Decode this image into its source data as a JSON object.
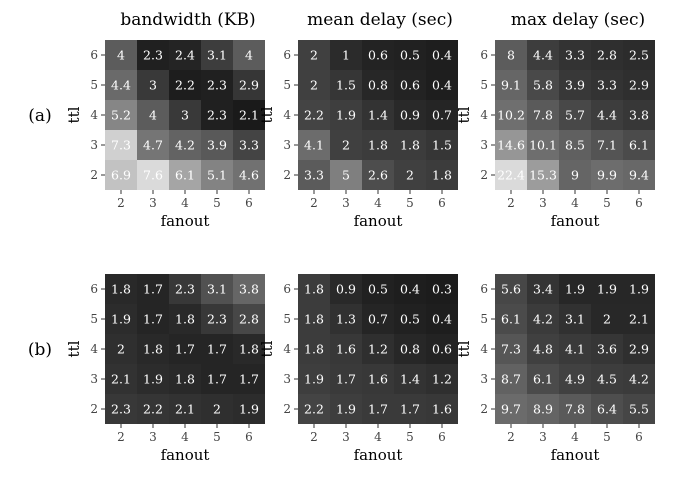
{
  "figure": {
    "row_labels": [
      "(a)",
      "(b)"
    ],
    "col_titles": [
      "bandwidth (KB)",
      "mean delay (sec)",
      "max delay (sec)"
    ]
  },
  "chart_data": [
    {
      "type": "heatmap",
      "row": "(a)",
      "title": "bandwidth (KB)",
      "xlabel": "fanout",
      "ylabel": "ttl",
      "x": [
        2,
        3,
        4,
        5,
        6
      ],
      "y": [
        2,
        3,
        4,
        5,
        6
      ],
      "values": [
        [
          6.9,
          7.6,
          6.1,
          5.1,
          4.6
        ],
        [
          7.3,
          4.7,
          4.2,
          3.9,
          3.3
        ],
        [
          5.2,
          4,
          3,
          2.3,
          2.1
        ],
        [
          4.4,
          3,
          2.2,
          2.3,
          2.9
        ],
        [
          4,
          2.3,
          2.4,
          3.1,
          4
        ]
      ],
      "color_range": [
        2,
        8
      ]
    },
    {
      "type": "heatmap",
      "row": "(a)",
      "title": "mean delay (sec)",
      "xlabel": "fanout",
      "ylabel": "ttl",
      "x": [
        2,
        3,
        4,
        5,
        6
      ],
      "y": [
        2,
        3,
        4,
        5,
        6
      ],
      "values": [
        [
          3.3,
          5,
          2.6,
          2,
          1.8
        ],
        [
          4.1,
          2,
          1.8,
          1.8,
          1.5
        ],
        [
          2.2,
          1.9,
          1.4,
          0.9,
          0.7
        ],
        [
          2,
          1.5,
          0.8,
          0.6,
          0.4
        ],
        [
          2,
          1,
          0.6,
          0.5,
          0.4
        ]
      ],
      "color_range": [
        0,
        10
      ]
    },
    {
      "type": "heatmap",
      "row": "(a)",
      "title": "max delay (sec)",
      "xlabel": "fanout",
      "ylabel": "ttl",
      "x": [
        2,
        3,
        4,
        5,
        6
      ],
      "y": [
        2,
        3,
        4,
        5,
        6
      ],
      "values": [
        [
          22.4,
          15.3,
          9,
          9.9,
          9.4
        ],
        [
          14.6,
          10.1,
          8.5,
          7.1,
          6.1
        ],
        [
          10.2,
          7.8,
          5.7,
          4.4,
          3.8
        ],
        [
          9.1,
          5.8,
          3.9,
          3.3,
          2.9
        ],
        [
          8,
          4.4,
          3.3,
          2.8,
          2.5
        ]
      ],
      "color_range": [
        0,
        24
      ]
    },
    {
      "type": "heatmap",
      "row": "(b)",
      "title": "",
      "xlabel": "fanout",
      "ylabel": "ttl",
      "x": [
        2,
        3,
        4,
        5,
        6
      ],
      "y": [
        2,
        3,
        4,
        5,
        6
      ],
      "values": [
        [
          2.3,
          2.2,
          2.1,
          2,
          1.9
        ],
        [
          2.1,
          1.9,
          1.8,
          1.7,
          1.7
        ],
        [
          2,
          1.8,
          1.7,
          1.7,
          1.8
        ],
        [
          1.9,
          1.7,
          1.8,
          2.3,
          2.8
        ],
        [
          1.8,
          1.7,
          2.3,
          3.1,
          3.8
        ]
      ],
      "color_range": [
        1.2,
        8
      ]
    },
    {
      "type": "heatmap",
      "row": "(b)",
      "title": "",
      "xlabel": "fanout",
      "ylabel": "ttl",
      "x": [
        2,
        3,
        4,
        5,
        6
      ],
      "y": [
        2,
        3,
        4,
        5,
        6
      ],
      "values": [
        [
          2.2,
          1.9,
          1.7,
          1.7,
          1.6
        ],
        [
          1.9,
          1.7,
          1.6,
          1.4,
          1.2
        ],
        [
          1.8,
          1.6,
          1.2,
          0.8,
          0.6
        ],
        [
          1.8,
          1.3,
          0.7,
          0.5,
          0.4
        ],
        [
          1.8,
          0.9,
          0.5,
          0.4,
          0.3
        ]
      ],
      "color_range": [
        0,
        10
      ]
    },
    {
      "type": "heatmap",
      "row": "(b)",
      "title": "",
      "xlabel": "fanout",
      "ylabel": "ttl",
      "x": [
        2,
        3,
        4,
        5,
        6
      ],
      "y": [
        2,
        3,
        4,
        5,
        6
      ],
      "values": [
        [
          9.7,
          8.9,
          7.8,
          6.4,
          5.5
        ],
        [
          8.7,
          6.1,
          4.9,
          4.5,
          4.2
        ],
        [
          7.3,
          4.8,
          4.1,
          3.6,
          2.9
        ],
        [
          6.1,
          4.2,
          3.1,
          2,
          2.1
        ],
        [
          5.6,
          3.4,
          1.9,
          1.9,
          1.9
        ]
      ],
      "color_range": [
        0,
        24
      ]
    }
  ]
}
